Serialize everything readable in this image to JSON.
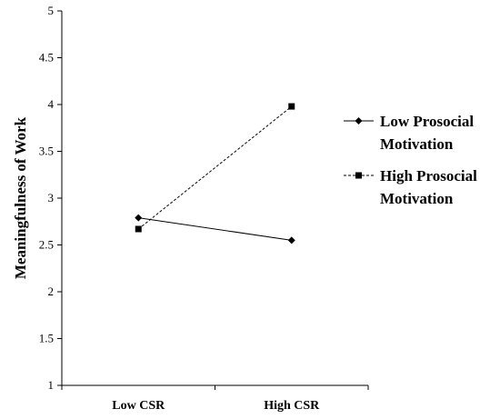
{
  "chart_data": {
    "type": "line",
    "categories": [
      "Low CSR",
      "High CSR"
    ],
    "ylabel": "Meaningfulness  of Work",
    "xlabel": "",
    "ylim": [
      1,
      5
    ],
    "yticks": [
      "1",
      "1.5",
      "2",
      "2.5",
      "3",
      "3.5",
      "4",
      "4.5",
      "5"
    ],
    "grid": false,
    "legend_position": "right",
    "series": [
      {
        "name_lines": [
          "Low Prosocial",
          "Motivation"
        ],
        "values": [
          2.79,
          2.55
        ],
        "marker": "diamond",
        "line_style": "solid",
        "color": "#000000"
      },
      {
        "name_lines": [
          "High Prosocial",
          "Motivation"
        ],
        "values": [
          2.67,
          3.98
        ],
        "marker": "square",
        "line_style": "dashed",
        "color": "#000000"
      }
    ]
  }
}
